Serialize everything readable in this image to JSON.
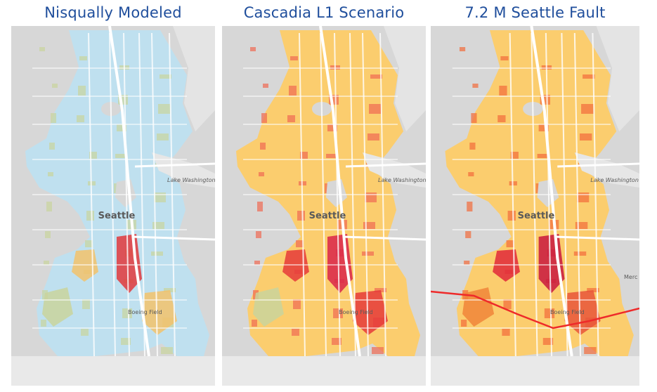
{
  "panels": [
    {
      "title": "Nisqually Modeled",
      "fill_primary": "#bfe0ef",
      "fill_secondary": "#c9d49c",
      "patches": [
        {
          "c": "#f2c26b"
        },
        {
          "c": "#e0383c"
        },
        {
          "c": "#f2c26b"
        },
        {
          "c": "#c9d49c"
        }
      ],
      "label_city": "Seattle",
      "label_lake": "Lake Washington",
      "label_field": "Boeing Field",
      "label_east": ""
    },
    {
      "title": "Cascadia L1 Scenario",
      "fill_primary": "#fbcd6e",
      "fill_secondary": "#ef6a52",
      "patches": [
        {
          "c": "#e53a3a"
        },
        {
          "c": "#d9234a"
        },
        {
          "c": "#e53a3a"
        },
        {
          "c": "#c9d49c"
        }
      ],
      "label_city": "Seattle",
      "label_lake": "Lake Washington",
      "label_field": "Boeing Field",
      "label_east": ""
    },
    {
      "title": "7.2 M Seattle Fault",
      "fill_primary": "#fbcd6e",
      "fill_secondary": "#f26b3a",
      "patches": [
        {
          "c": "#e0283a"
        },
        {
          "c": "#c8163e"
        },
        {
          "c": "#e8553a"
        },
        {
          "c": "#f0853a"
        }
      ],
      "label_city": "Seattle",
      "label_lake": "Lake Washington",
      "label_field": "Boeing Field",
      "label_east": "Merc",
      "fault_line_color": "#ee2a2a"
    }
  ]
}
